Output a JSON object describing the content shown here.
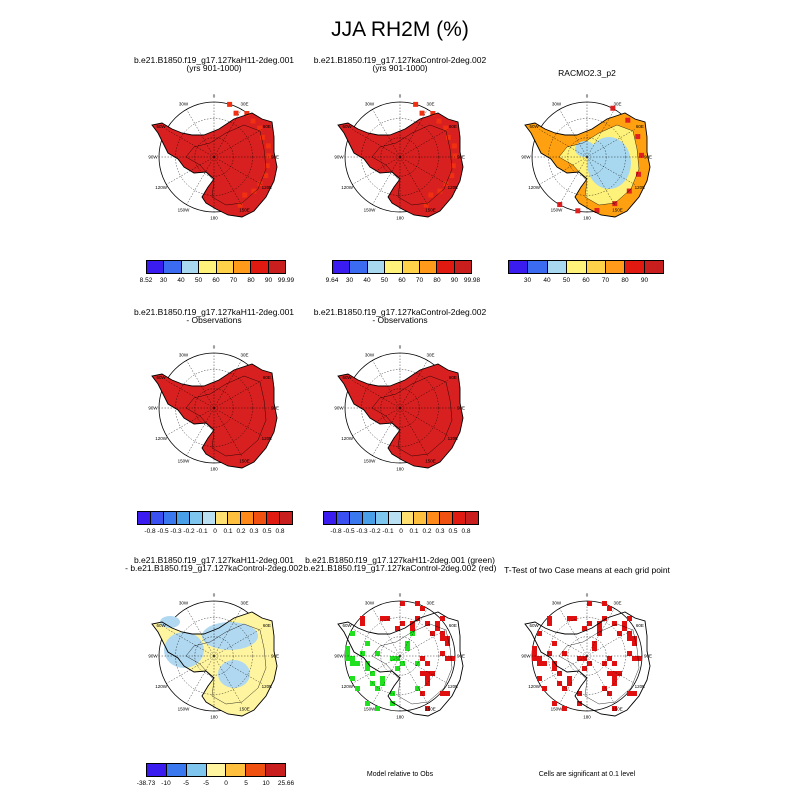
{
  "title": "JJA RH2M (%)",
  "colors": {
    "model_levels": [
      "#3a1cf0",
      "#3a6bf0",
      "#4aa0e8",
      "#a8d8f0",
      "#fff27a",
      "#ffd24a",
      "#ff9a1a",
      "#ff3a1a",
      "#e01a10",
      "#c81e1e"
    ],
    "diff_levels": [
      "#3a1cf0",
      "#3a50f0",
      "#3a78f0",
      "#4aa0e8",
      "#7ec6ee",
      "#b8e0f2",
      "#fff5a0",
      "#ffe070",
      "#ffc040",
      "#ff8a1a",
      "#f05010",
      "#e01a10",
      "#c81e1e"
    ],
    "model_red": "#d82020",
    "model_brightred": "#f03010",
    "racmo_light": "#a8d8f0",
    "racmo_yellow": "#fff27a",
    "racmo_orange": "#ffa010",
    "diff_blue": "#b0d8f0",
    "diff_yellow": "#fff5a0",
    "sig_green": "#20e020",
    "sig_red": "#e01010"
  },
  "panels": [
    {
      "id": "p1",
      "title_line1": "b.e21.B1850.f19_g17.127kaH11-2deg.001",
      "title_line2": "(yrs 901-1000)"
    },
    {
      "id": "p2",
      "title_line1": "b.e21.B1850.f19_g17.127kaControl-2deg.002",
      "title_line2": "(yrs 901-1000)"
    },
    {
      "id": "p3",
      "title_line1": "RACMO2.3_p2",
      "title_line2": ""
    },
    {
      "id": "p4",
      "title_line1": "b.e21.B1850.f19_g17.127kaH11-2deg.001",
      "title_line2": "- Observations"
    },
    {
      "id": "p5",
      "title_line1": "b.e21.B1850.f19_g17.127kaControl-2deg.002",
      "title_line2": "- Observations"
    },
    {
      "id": "p7",
      "title_line1": "b.e21.B1850.f19_g17.127kaH11-2deg.001",
      "title_line2": "- b.e21.B1850.f19_g17.127kaControl-2deg.002"
    },
    {
      "id": "p8",
      "title_line1": "b.e21.B1850.f19_g17.127kaH11-2deg.001 (green)",
      "title_line2": "b.e21.B1850.f19_g17.127kaControl-2deg.002 (red)"
    },
    {
      "id": "p9",
      "title_line1": "T-Test of two Case means at each grid point",
      "title_line2": ""
    }
  ],
  "longitude_labels": [
    "0",
    "30E",
    "60E",
    "90E",
    "120E",
    "150E",
    "180",
    "150W",
    "120W",
    "90W",
    "60W",
    "30W"
  ],
  "colorbars": {
    "cb1": [
      "8.52",
      "30",
      "40",
      "50",
      "60",
      "70",
      "80",
      "90",
      "99.99"
    ],
    "cb2": [
      "9.64",
      "30",
      "40",
      "50",
      "60",
      "70",
      "80",
      "90",
      "99.98"
    ],
    "cb3": [
      "30",
      "40",
      "50",
      "60",
      "70",
      "80",
      "90"
    ],
    "cb4": [
      "-0.8",
      "-0.5",
      "-0.3",
      "-0.2",
      "-0.1",
      "0",
      "0.1",
      "0.2",
      "0.3",
      "0.5",
      "0.8"
    ],
    "cb5": [
      "-0.8",
      "-0.5",
      "-0.3",
      "-0.2",
      "-0.1",
      "0",
      "0.1",
      "0.2",
      "0.3",
      "0.5",
      "0.8"
    ],
    "cb7": [
      "-38.73",
      "-10",
      "-5",
      "-5",
      "0",
      "5",
      "10",
      "25.66"
    ]
  },
  "notes": {
    "model_relative": "Model relative to Obs",
    "cells_significant": "Cells are significant at 0.1 level"
  }
}
